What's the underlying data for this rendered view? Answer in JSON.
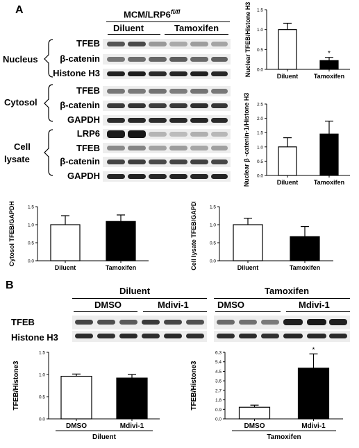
{
  "panel_a": {
    "letter": "A",
    "header": "MCM/LRP6",
    "header_sup": "fl/fl",
    "groups": [
      "Diluent",
      "Tamoxifen"
    ],
    "sections": [
      "Nucleus",
      "Cytosol",
      "Cell",
      "lysate"
    ],
    "rows": [
      "TFEB",
      "β-catenin",
      "Histone H3",
      "TFEB",
      "β-catenin",
      "GAPDH",
      "LRP6",
      "TFEB",
      "β-catenin",
      "GAPDH"
    ]
  },
  "panel_b": {
    "letter": "B",
    "groups": [
      "Diluent",
      "Tamoxifen"
    ],
    "subgroups": [
      "DMSO",
      "Mdivi-1",
      "DMSO",
      "Mdivi-1"
    ],
    "rows": [
      "TFEB",
      "Histone  H3"
    ]
  },
  "chart_data": [
    {
      "type": "bar",
      "ylabel": "Nuclear TFEB/Histone H3",
      "categories": [
        "Diluent",
        "Tamoxifen"
      ],
      "values": [
        1.0,
        0.22
      ],
      "errors": [
        0.16,
        0.08
      ],
      "colors": [
        "#ffffff",
        "#000000"
      ],
      "ylim": [
        0,
        1.5
      ],
      "yticks": [
        "0.0",
        "0.5",
        "1.0",
        "1.5"
      ],
      "annotations": [
        "",
        "*"
      ]
    },
    {
      "type": "bar",
      "ylabel": "Nuclear β -catenin-1/Histone H3",
      "categories": [
        "Diluent",
        "Tamoxifen"
      ],
      "values": [
        1.0,
        1.45
      ],
      "errors": [
        0.32,
        0.45
      ],
      "colors": [
        "#ffffff",
        "#000000"
      ],
      "ylim": [
        0,
        2.5
      ],
      "yticks": [
        "0.0",
        "0.5",
        "1.0",
        "1.5",
        "2.0",
        "2.5"
      ],
      "annotations": [
        "",
        ""
      ]
    },
    {
      "type": "bar",
      "ylabel": "Cytosol TFEB/GAPDH",
      "categories": [
        "Diluent",
        "Tamoxifen"
      ],
      "values": [
        1.0,
        1.09
      ],
      "errors": [
        0.25,
        0.18
      ],
      "colors": [
        "#ffffff",
        "#000000"
      ],
      "ylim": [
        0,
        1.5
      ],
      "yticks": [
        "0.0",
        "0.5",
        "1.0",
        "1.5"
      ],
      "annotations": [
        "",
        ""
      ]
    },
    {
      "type": "bar",
      "ylabel": "Cell lysate TFEB/GAPDH",
      "categories": [
        "Diluent",
        "Tamoxifen"
      ],
      "values": [
        1.0,
        0.67
      ],
      "errors": [
        0.18,
        0.28
      ],
      "colors": [
        "#ffffff",
        "#000000"
      ],
      "ylim": [
        0,
        1.5
      ],
      "yticks": [
        "0.0",
        "0.5",
        "1.0",
        "1.5"
      ],
      "annotations": [
        "",
        ""
      ]
    },
    {
      "type": "bar",
      "ylabel": "TFEB/Histone3",
      "categories": [
        "DMSO",
        "Mdivi-1"
      ],
      "group_label": "Diluent",
      "values": [
        0.96,
        0.92
      ],
      "errors": [
        0.05,
        0.08
      ],
      "colors": [
        "#ffffff",
        "#000000"
      ],
      "ylim": [
        0,
        1.5
      ],
      "yticks": [
        "0.0",
        "0.5",
        "1.0",
        "1.5"
      ],
      "annotations": [
        "",
        ""
      ]
    },
    {
      "type": "bar",
      "ylabel": "TFEB/Histone3",
      "categories": [
        "DMSO",
        "Mdivi-1"
      ],
      "group_label": "Tamoxifen",
      "values": [
        1.1,
        4.8
      ],
      "errors": [
        0.2,
        1.35
      ],
      "colors": [
        "#ffffff",
        "#000000"
      ],
      "ylim": [
        0,
        6.3
      ],
      "yticks": [
        "0.0",
        "0.9",
        "1.8",
        "2.7",
        "3.6",
        "4.5",
        "5.4",
        "6.3"
      ],
      "annotations": [
        "",
        "*"
      ]
    }
  ]
}
